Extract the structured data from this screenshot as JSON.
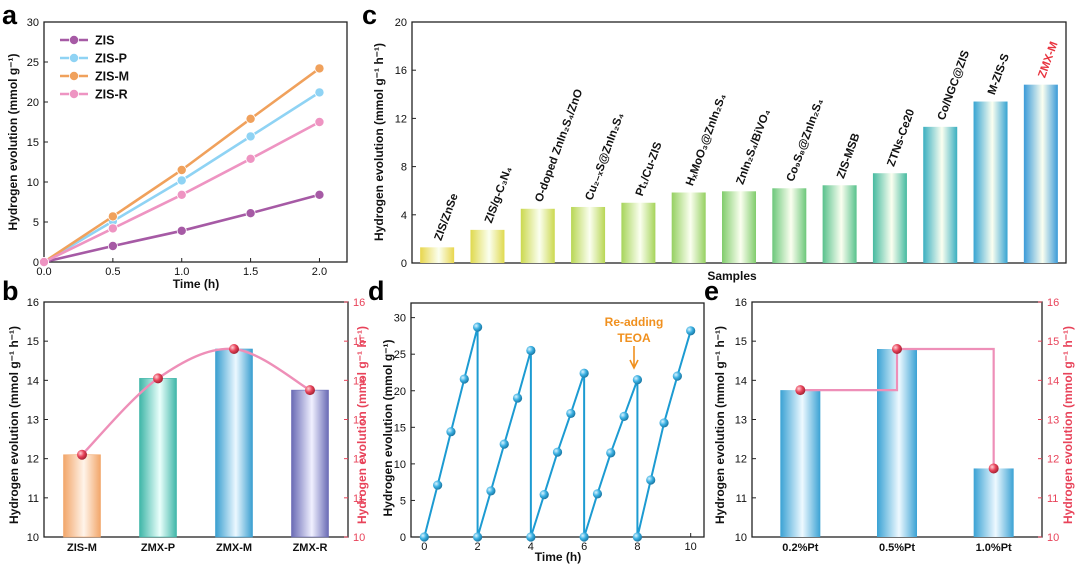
{
  "chart_data": [
    {
      "id": "a",
      "type": "line",
      "panel_label": "a",
      "xlabel": "Time (h)",
      "ylabel": "Hydrogen evolution (mmol g⁻¹)",
      "x": [
        0,
        0.5,
        1.0,
        1.5,
        2.0
      ],
      "xlim": [
        0,
        2.2
      ],
      "ylim": [
        0,
        30
      ],
      "xticks": [
        "0.0",
        "0.5",
        "1.0",
        "1.5",
        "2.0"
      ],
      "yticks": [
        "0",
        "5",
        "10",
        "15",
        "20",
        "25",
        "30"
      ],
      "series": [
        {
          "name": "ZIS",
          "color": "#a65aa5",
          "values": [
            0,
            2.0,
            3.9,
            6.1,
            8.4
          ]
        },
        {
          "name": "ZIS-P",
          "color": "#8fd3f4",
          "values": [
            0,
            5.1,
            10.2,
            15.7,
            21.2
          ]
        },
        {
          "name": "ZIS-M",
          "color": "#f0a15c",
          "values": [
            0,
            5.7,
            11.5,
            17.9,
            24.2
          ]
        },
        {
          "name": "ZIS-R",
          "color": "#ee94c2",
          "values": [
            0,
            4.2,
            8.4,
            12.9,
            17.5
          ]
        }
      ]
    },
    {
      "id": "b",
      "type": "bar",
      "panel_label": "b",
      "categories": [
        "ZIS-M",
        "ZMX-P",
        "ZMX-M",
        "ZMX-R"
      ],
      "values": [
        12.1,
        14.05,
        14.8,
        13.75
      ],
      "bar_colors": [
        "#f2a66a",
        "#3fb6a8",
        "#3a9fd0",
        "#6a6bb5"
      ],
      "right_axis_values": [
        12.1,
        14.05,
        14.8,
        13.75
      ],
      "ylabel": "Hydrogen evolution (mmol g⁻¹ h⁻¹)",
      "ylabel_right": "Hydrogen evolution (mmol g⁻¹ h⁻¹)",
      "ylim": [
        10,
        16
      ],
      "yticks": [
        "10",
        "11",
        "12",
        "13",
        "14",
        "15",
        "16"
      ],
      "marker_color": "#e8435a",
      "curve_color": "#ee8fb8"
    },
    {
      "id": "c",
      "type": "bar",
      "panel_label": "c",
      "xlabel": "Samples",
      "ylabel": "Hydrogen evolution (mmol g⁻¹ h⁻¹)",
      "ylim": [
        0,
        20
      ],
      "yticks": [
        "0",
        "4",
        "8",
        "12",
        "16",
        "20"
      ],
      "categories": [
        "ZIS/ZnSe",
        "ZIS/g-C₃N₄",
        "O-doped ZnIn₂S₄/ZnO",
        "Cu₂₋ₓS@ZnIn₂S₄",
        "Pt₁/Cu-ZIS",
        "HₓMoO₃@ZnIn₂S₄",
        "ZnIn₂S₄/BiVO₄",
        "Co₉S₈@ZnIn₂S₄",
        "ZIS-MSB",
        "ZTNs-Ce20",
        "Co/NGC@ZIS",
        "M-ZIS-S",
        "ZMX-M"
      ],
      "values": [
        1.3,
        2.75,
        4.5,
        4.65,
        5.0,
        5.85,
        5.95,
        6.2,
        6.45,
        7.45,
        11.3,
        13.4,
        14.8
      ],
      "label_colors": [
        "#111111",
        "#111111",
        "#111111",
        "#111111",
        "#111111",
        "#111111",
        "#111111",
        "#111111",
        "#111111",
        "#111111",
        "#111111",
        "#111111",
        "#e8343f"
      ],
      "bar_colors": [
        "#e8d64c",
        "#dfd94e",
        "#cbd84e",
        "#b8d654",
        "#a6d45a",
        "#95d061",
        "#80cc6c",
        "#6cc77a",
        "#58c18c",
        "#46baa0",
        "#3aafc0",
        "#37a4d2",
        "#3a9ad8"
      ]
    },
    {
      "id": "d",
      "type": "line",
      "panel_label": "d",
      "xlabel": "Time (h)",
      "ylabel": "Hydrogen evolution (mmol g⁻¹)",
      "xlim": [
        -0.5,
        10.5
      ],
      "ylim": [
        0,
        32
      ],
      "xticks": [
        "0",
        "2",
        "4",
        "6",
        "8",
        "10"
      ],
      "yticks": [
        "0",
        "5",
        "10",
        "15",
        "20",
        "25",
        "30"
      ],
      "color": "#1c9bd2",
      "marker_color": "#3ab0e2",
      "cycles": [
        {
          "x": [
            0,
            0.5,
            1.0,
            1.5,
            2.0
          ],
          "values": [
            0,
            7.1,
            14.4,
            21.6,
            28.7
          ]
        },
        {
          "x": [
            2.0,
            2.5,
            3.0,
            3.5,
            4.0
          ],
          "values": [
            0,
            6.3,
            12.7,
            19.0,
            25.5
          ]
        },
        {
          "x": [
            4.0,
            4.5,
            5.0,
            5.5,
            6.0
          ],
          "values": [
            0,
            5.8,
            11.6,
            16.9,
            22.4
          ]
        },
        {
          "x": [
            6.0,
            6.5,
            7.0,
            7.5,
            8.0
          ],
          "values": [
            0,
            5.9,
            11.5,
            16.5,
            21.5
          ]
        },
        {
          "x": [
            8.0,
            8.5,
            9.0,
            9.5,
            10.0
          ],
          "values": [
            0,
            7.8,
            15.6,
            22.0,
            28.2
          ]
        }
      ],
      "annotation": {
        "lines": [
          "Re-adding",
          "TEOA"
        ],
        "x": 8.0,
        "color": "#f0901e"
      }
    },
    {
      "id": "e",
      "type": "bar",
      "panel_label": "e",
      "categories": [
        "0.2%Pt",
        "0.5%Pt",
        "1.0%Pt"
      ],
      "values": [
        13.75,
        14.8,
        11.75
      ],
      "right_axis_values": [
        13.75,
        14.8,
        11.75
      ],
      "ylabel": "Hydrogen evolution (mmol g⁻¹ h⁻¹)",
      "ylabel_right": "Hydrogen evolution (mmol g⁻¹ h⁻¹)",
      "ylim": [
        10,
        16
      ],
      "yticks": [
        "10",
        "11",
        "12",
        "13",
        "14",
        "15",
        "16"
      ],
      "bar_color": "#3aa2d4",
      "marker_color": "#e8435a",
      "step_color": "#ee8fb8"
    }
  ]
}
